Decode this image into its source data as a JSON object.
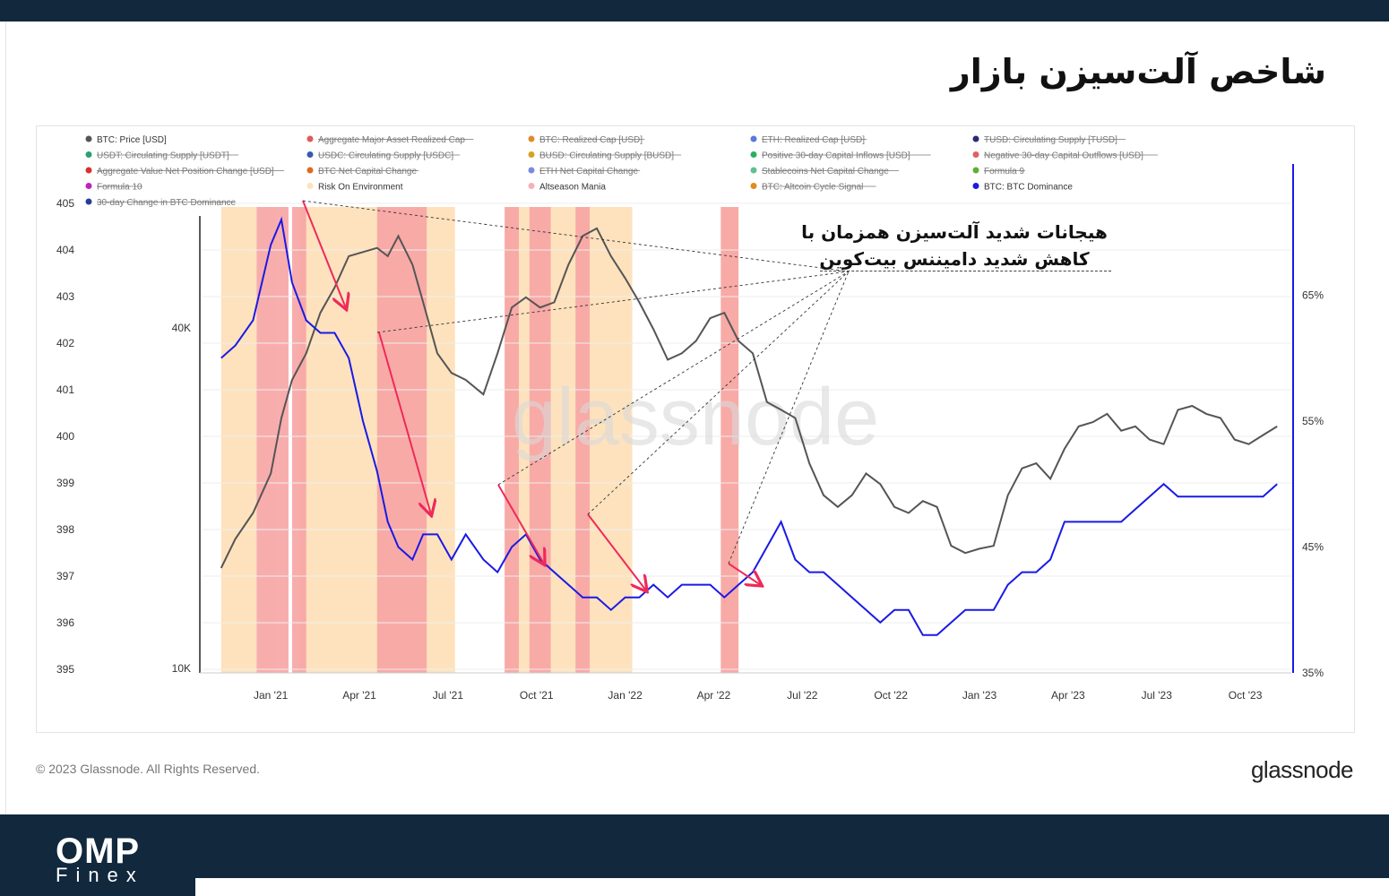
{
  "page": {
    "title": "شاخص آلت‌سیزن بازار",
    "footer_copyright": "© 2023 Glassnode. All Rights Reserved.",
    "footer_brand": "glassnode",
    "logo_omp": "OMP",
    "logo_finex": "Finex"
  },
  "colors": {
    "price_line": "#555555",
    "dominance_line": "#1a1ae6",
    "risk_on": "#fde2bd",
    "altseason_mania": "#f7a4a4",
    "arrow": "#ee2a5a",
    "dark_band": "#11283d"
  },
  "annotation": {
    "line1": "هیجانات شدید آلت‌سیزن همزمان با",
    "line2": "کاهش شدید دامیننس بیت‌کوین"
  },
  "chart_data": {
    "type": "line",
    "watermark": "glassnode",
    "legend": [
      {
        "label": "BTC: Price [USD]",
        "color": "#555555",
        "active": true
      },
      {
        "label": "Aggregate Major Asset Realized Cap",
        "color": "#e05a5a",
        "active": false
      },
      {
        "label": "BTC: Realized Cap [USD]",
        "color": "#e08a2a",
        "active": false
      },
      {
        "label": "ETH: Realized Cap [USD]",
        "color": "#5a7ad8",
        "active": false
      },
      {
        "label": "TUSD: Circulating Supply [TUSD]",
        "color": "#2a2a7a",
        "active": false
      },
      {
        "label": "USDT: Circulating Supply [USDT]",
        "color": "#2aa070",
        "active": false
      },
      {
        "label": "USDC: Circulating Supply [USDC]",
        "color": "#3a5ab0",
        "active": false
      },
      {
        "label": "BUSD: Circulating Supply [BUSD]",
        "color": "#d8a020",
        "active": false
      },
      {
        "label": "Positive 30-day Capital Inflows [USD]",
        "color": "#2ab060",
        "active": false
      },
      {
        "label": "Negative 30-day Capital Outflows [USD]",
        "color": "#e06060",
        "active": false
      },
      {
        "label": "Aggregate Value Net Position Change [USD]",
        "color": "#d83030",
        "active": false
      },
      {
        "label": "BTC Net Capital Change",
        "color": "#e06a20",
        "active": false
      },
      {
        "label": "ETH Net Capital Change",
        "color": "#7a8ae0",
        "active": false
      },
      {
        "label": "Stablecoins Net Capital Change",
        "color": "#60c090",
        "active": false
      },
      {
        "label": "Formula 9",
        "color": "#60b030",
        "active": false
      },
      {
        "label": "Formula 10",
        "color": "#c020c0",
        "active": false
      },
      {
        "label": "Risk On Environment",
        "color": "#fde2bd",
        "active": true
      },
      {
        "label": "Altseason Mania",
        "color": "#f7b0b8",
        "active": true
      },
      {
        "label": "BTC: Altcoin Cycle Signal",
        "color": "#e08a20",
        "active": false
      },
      {
        "label": "BTC: BTC Dominance",
        "color": "#1a1ae6",
        "active": true
      },
      {
        "label": "30-day Change in BTC Dominance",
        "color": "#2a3a9a",
        "active": false
      }
    ],
    "x_ticks": [
      "Jan '21",
      "Apr '21",
      "Jul '21",
      "Oct '21",
      "Jan '22",
      "Apr '22",
      "Jul '22",
      "Oct '22",
      "Jan '23",
      "Apr '23",
      "Jul '23",
      "Oct '23"
    ],
    "y_left_outer_ticks": [
      "405",
      "404",
      "403",
      "402",
      "401",
      "400",
      "399",
      "398",
      "397",
      "396",
      "395"
    ],
    "y_left_inner_ticks": [
      "40K",
      "10K"
    ],
    "y_right_ticks": [
      "65%",
      "55%",
      "45%",
      "35%"
    ],
    "price_scale": "log",
    "series": [
      {
        "name": "BTC: Price [USD]",
        "x": [
          2020.86,
          2020.9,
          2020.95,
          2021.0,
          2021.03,
          2021.06,
          2021.1,
          2021.14,
          2021.18,
          2021.22,
          2021.26,
          2021.3,
          2021.33,
          2021.36,
          2021.4,
          2021.43,
          2021.47,
          2021.51,
          2021.55,
          2021.6,
          2021.64,
          2021.68,
          2021.72,
          2021.76,
          2021.8,
          2021.84,
          2021.88,
          2021.92,
          2021.96,
          2022.0,
          2022.04,
          2022.08,
          2022.12,
          2022.16,
          2022.2,
          2022.24,
          2022.28,
          2022.32,
          2022.36,
          2022.4,
          2022.44,
          2022.48,
          2022.52,
          2022.56,
          2022.6,
          2022.64,
          2022.68,
          2022.72,
          2022.76,
          2022.8,
          2022.84,
          2022.88,
          2022.92,
          2022.96,
          2023.0,
          2023.04,
          2023.08,
          2023.12,
          2023.16,
          2023.2,
          2023.24,
          2023.28,
          2023.32,
          2023.36,
          2023.4,
          2023.44,
          2023.48,
          2023.52,
          2023.56,
          2023.6,
          2023.64,
          2023.68,
          2023.72,
          2023.76,
          2023.8,
          2023.84
        ],
        "values": [
          15500,
          17500,
          19500,
          23000,
          29000,
          34000,
          38000,
          45000,
          50000,
          57000,
          58000,
          59000,
          57000,
          62000,
          55000,
          47000,
          38000,
          35000,
          34000,
          32000,
          38000,
          46000,
          48000,
          46000,
          47000,
          55000,
          62000,
          64000,
          57000,
          52000,
          47000,
          42000,
          37000,
          38000,
          40000,
          44000,
          45000,
          40000,
          38000,
          31000,
          30000,
          29000,
          24000,
          21000,
          20000,
          21000,
          23000,
          22000,
          20000,
          19500,
          20500,
          20000,
          17000,
          16500,
          16800,
          17000,
          21000,
          23500,
          24000,
          22500,
          25500,
          28000,
          28500,
          29500,
          27500,
          28000,
          26500,
          26000,
          30000,
          30500,
          29500,
          29000,
          26500,
          26000,
          27000,
          28000
        ]
      },
      {
        "name": "BTC: BTC Dominance",
        "x": [
          2020.86,
          2020.9,
          2020.95,
          2021.0,
          2021.03,
          2021.06,
          2021.1,
          2021.14,
          2021.18,
          2021.22,
          2021.26,
          2021.3,
          2021.33,
          2021.36,
          2021.4,
          2021.43,
          2021.47,
          2021.51,
          2021.55,
          2021.6,
          2021.64,
          2021.68,
          2021.72,
          2021.76,
          2021.8,
          2021.84,
          2021.88,
          2021.92,
          2021.96,
          2022.0,
          2022.04,
          2022.08,
          2022.12,
          2022.16,
          2022.2,
          2022.24,
          2022.28,
          2022.32,
          2022.36,
          2022.4,
          2022.44,
          2022.48,
          2022.52,
          2022.56,
          2022.6,
          2022.64,
          2022.68,
          2022.72,
          2022.76,
          2022.8,
          2022.84,
          2022.88,
          2022.92,
          2022.96,
          2023.0,
          2023.04,
          2023.08,
          2023.12,
          2023.16,
          2023.2,
          2023.24,
          2023.28,
          2023.32,
          2023.36,
          2023.4,
          2023.44,
          2023.48,
          2023.52,
          2023.56,
          2023.6,
          2023.64,
          2023.68,
          2023.72,
          2023.76,
          2023.8,
          2023.84
        ],
        "values": [
          60,
          61,
          63,
          69,
          71,
          66,
          63,
          62,
          62,
          60,
          55,
          51,
          47,
          45,
          44,
          46,
          46,
          44,
          46,
          44,
          43,
          45,
          46,
          44,
          43,
          42,
          41,
          41,
          40,
          41,
          41,
          42,
          41,
          42,
          42,
          42,
          41,
          42,
          43,
          45,
          47,
          44,
          43,
          43,
          42,
          41,
          40,
          39,
          40,
          40,
          38,
          38,
          39,
          40,
          40,
          40,
          42,
          43,
          43,
          44,
          47,
          47,
          47,
          47,
          47,
          48,
          49,
          50,
          49,
          49,
          49,
          49,
          49,
          49,
          49,
          50
        ]
      }
    ],
    "risk_on_periods": [
      [
        2020.86,
        2020.96
      ],
      [
        2021.08,
        2021.52
      ],
      [
        2021.66,
        2022.02
      ],
      [
        2022.27,
        2022.32
      ]
    ],
    "altseason_mania_periods": [
      [
        2020.96,
        2021.02
      ],
      [
        2021.02,
        2021.05
      ],
      [
        2021.06,
        2021.1
      ],
      [
        2021.3,
        2021.44
      ],
      [
        2021.66,
        2021.7
      ],
      [
        2021.73,
        2021.79
      ],
      [
        2021.86,
        2021.9
      ],
      [
        2022.27,
        2022.32
      ]
    ]
  }
}
